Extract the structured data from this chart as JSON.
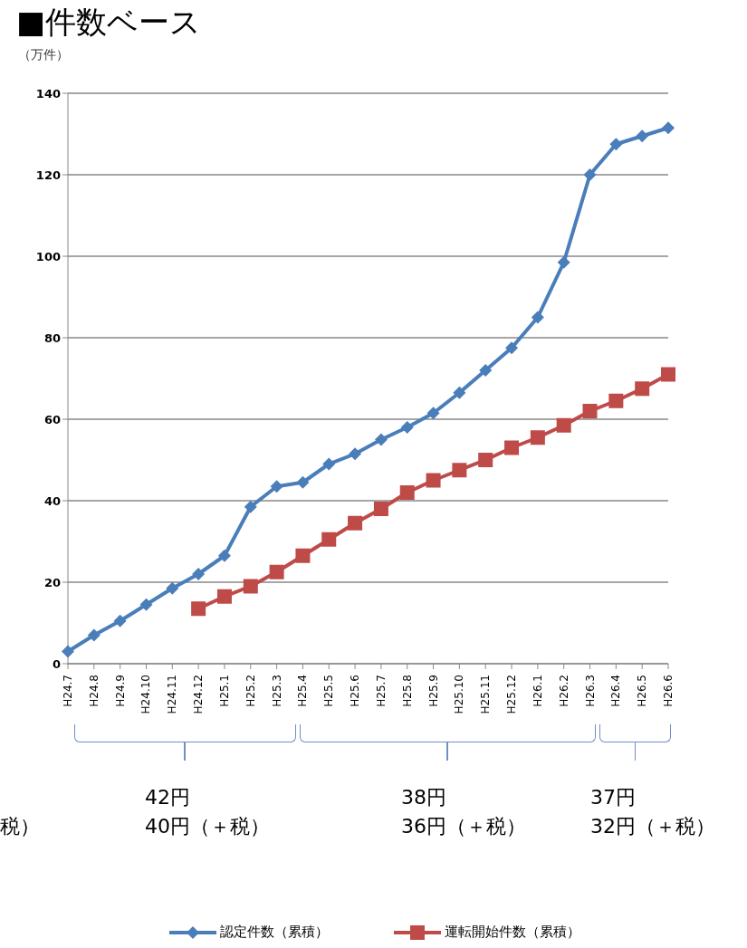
{
  "chart_data": {
    "type": "line",
    "title": "■件数ベース",
    "ylabel": "（万件）",
    "categories": [
      "H24.7",
      "H24.8",
      "H24.9",
      "H24.10",
      "H24.11",
      "H24.12",
      "H25.1",
      "H25.2",
      "H25.3",
      "H25.4",
      "H25.5",
      "H25.6",
      "H25.7",
      "H25.8",
      "H25.9",
      "H25.10",
      "H25.11",
      "H25.12",
      "H26.1",
      "H26.2",
      "H26.3",
      "H26.4",
      "H26.5",
      "H26.6"
    ],
    "series": [
      {
        "name": "認定件数（累積）",
        "color": "#4a7ebb",
        "marker": "diamond",
        "values": [
          3,
          7,
          10.5,
          14.5,
          18.5,
          22,
          26.5,
          38.5,
          43.5,
          44.5,
          49,
          51.5,
          55,
          58,
          61.5,
          66.5,
          72,
          77.5,
          85,
          98.5,
          120,
          127.5,
          129.5,
          131.5
        ]
      },
      {
        "name": "運転開始件数（累積）",
        "color": "#be4b48",
        "marker": "square",
        "values": [
          null,
          null,
          null,
          null,
          null,
          13.5,
          16.5,
          19,
          22.5,
          26.5,
          30.5,
          34.5,
          38,
          42,
          45,
          47.5,
          50,
          53,
          55.5,
          58.5,
          62,
          64.5,
          67.5,
          71
        ]
      }
    ],
    "ylim": [
      0,
      140
    ],
    "yticks": [
      0,
      20,
      40,
      60,
      80,
      100,
      120,
      140
    ],
    "grid": "y",
    "legend": "bottom",
    "annotations": [
      "税）",
      "42円",
      "40円（＋税）",
      "38円",
      "36円（＋税）",
      "37円",
      "32円（＋税）"
    ]
  }
}
